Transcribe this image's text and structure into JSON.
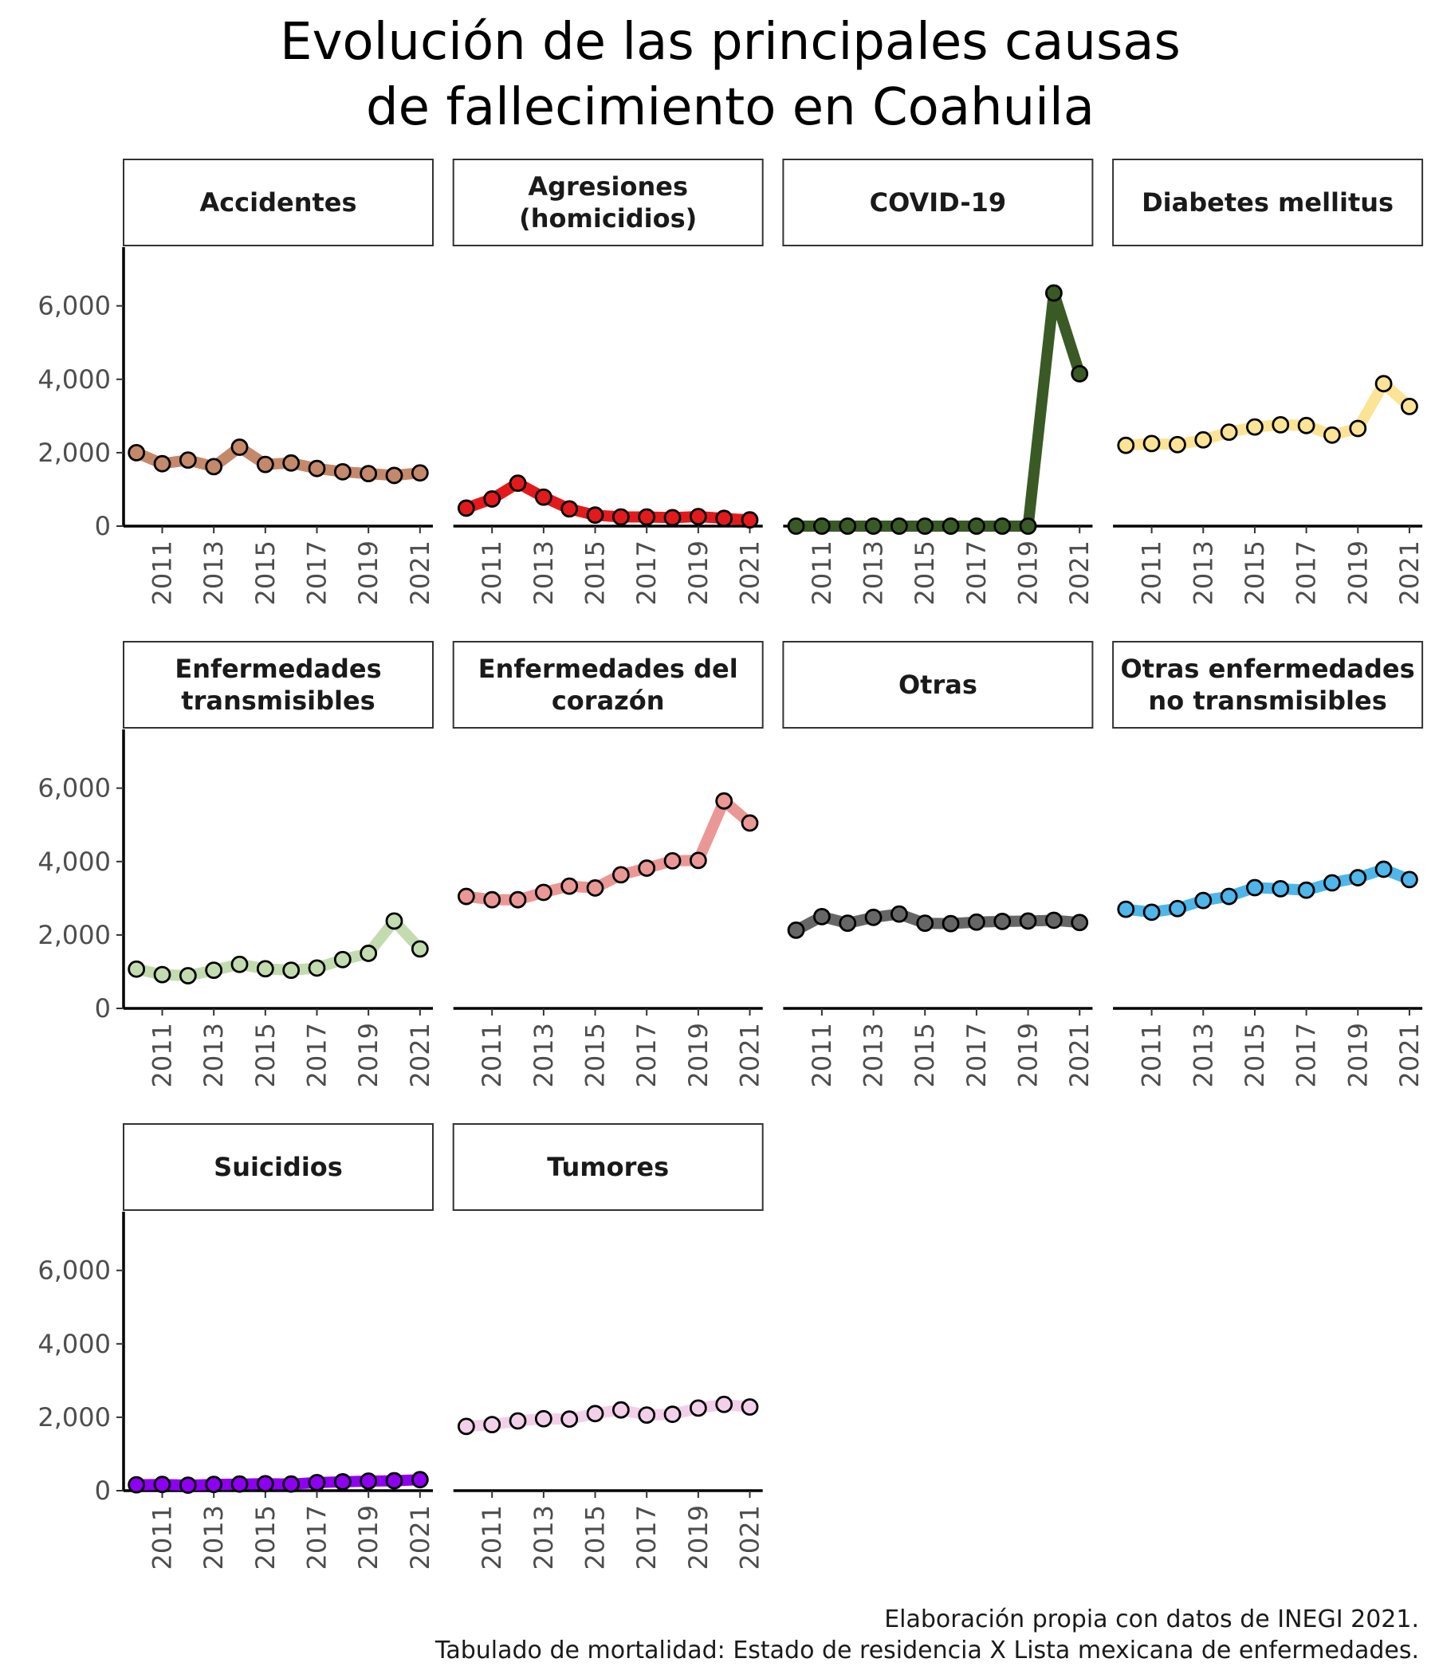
{
  "title": [
    "Evolución de las principales causas",
    "de fallecimiento en Coahuila"
  ],
  "caption": [
    "Elaboración propia con datos de INEGI 2021.",
    "Tabulado de mortalidad: Estado de residencia X Lista mexicana de enfermedades."
  ],
  "chart_data": {
    "type": "line",
    "facets": true,
    "x": [
      2010,
      2011,
      2012,
      2013,
      2014,
      2015,
      2016,
      2017,
      2018,
      2019,
      2020,
      2021
    ],
    "x_ticks": [
      2011,
      2013,
      2015,
      2017,
      2019,
      2021
    ],
    "x_tick_labels": [
      "2011",
      "2013",
      "2015",
      "2017",
      "2019",
      "2021"
    ],
    "ylim": [
      0,
      7600
    ],
    "y_ticks": [
      0,
      2000,
      4000,
      6000
    ],
    "y_tick_labels": [
      "0",
      "2,000",
      "4,000",
      "6,000"
    ],
    "grid": false,
    "legend": "none",
    "series": [
      {
        "label": [
          "Accidentes"
        ],
        "color": "#c4896a",
        "values": [
          2000,
          1700,
          1800,
          1620,
          2150,
          1680,
          1720,
          1570,
          1480,
          1430,
          1380,
          1450
        ]
      },
      {
        "label": [
          "Agresiones",
          "(homicidios)"
        ],
        "color": "#e31a1c",
        "values": [
          490,
          740,
          1170,
          790,
          470,
          300,
          250,
          250,
          230,
          260,
          210,
          170
        ]
      },
      {
        "label": [
          "COVID-19"
        ],
        "color": "#3a5a25",
        "values": [
          0,
          0,
          0,
          0,
          0,
          0,
          0,
          0,
          0,
          0,
          6350,
          4150
        ]
      },
      {
        "label": [
          "Diabetes mellitus"
        ],
        "color": "#fbe496",
        "values": [
          2200,
          2250,
          2220,
          2350,
          2560,
          2700,
          2760,
          2740,
          2480,
          2660,
          3880,
          3260
        ]
      },
      {
        "label": [
          "Enfermedades",
          "transmisibles"
        ],
        "color": "#c2dcaf",
        "values": [
          1070,
          920,
          890,
          1040,
          1200,
          1080,
          1040,
          1100,
          1330,
          1500,
          2380,
          1620
        ]
      },
      {
        "label": [
          "Enfermedades del",
          "corazón"
        ],
        "color": "#ea9896",
        "values": [
          3050,
          2960,
          2960,
          3160,
          3330,
          3280,
          3640,
          3820,
          4020,
          4030,
          5650,
          5050
        ]
      },
      {
        "label": [
          "Otras"
        ],
        "color": "#666666",
        "values": [
          2130,
          2500,
          2320,
          2480,
          2570,
          2320,
          2310,
          2350,
          2370,
          2380,
          2400,
          2340
        ]
      },
      {
        "label": [
          "Otras enfermedades",
          "no transmisibles"
        ],
        "color": "#4fb6ea",
        "values": [
          2700,
          2620,
          2720,
          2940,
          3050,
          3290,
          3260,
          3220,
          3420,
          3560,
          3790,
          3510
        ]
      },
      {
        "label": [
          "Suicidios"
        ],
        "color": "#8e00f0",
        "values": [
          160,
          170,
          150,
          170,
          180,
          190,
          180,
          220,
          240,
          260,
          270,
          300
        ]
      },
      {
        "label": [
          "Tumores"
        ],
        "color": "#f3d0ea",
        "values": [
          1750,
          1800,
          1900,
          1960,
          1950,
          2100,
          2200,
          2060,
          2080,
          2250,
          2350,
          2280
        ]
      }
    ]
  }
}
